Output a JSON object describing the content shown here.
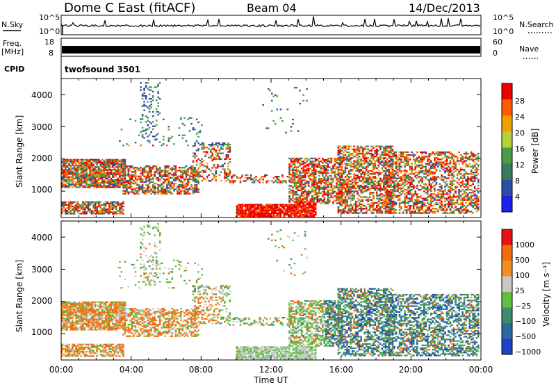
{
  "header": {
    "station": "Dome C East (fitACF)",
    "beam": "Beam 04",
    "date": "14/Dec/2013"
  },
  "top_panels": {
    "nsky_label": "N.Sky",
    "nsky_ticks": [
      "10^5",
      "10^0"
    ],
    "nsearch_label": "N.Search",
    "nsearch_ticks": [
      "10^5",
      "10^0"
    ],
    "freq_label": "Freq.",
    "freq_unit": "[MHz]",
    "freq_ticks": [
      "18",
      "8"
    ],
    "nave_label": "Nave",
    "nave_ticks": [
      "60",
      "0"
    ],
    "cpid_label": "CPID",
    "cpid_value": "twofsound 3501"
  },
  "chart_data": [
    {
      "type": "heatmap",
      "panel": "power",
      "ylabel": "Slant Range [km]",
      "ylim": [
        180,
        4500
      ],
      "yticks": [
        "4000",
        "3000",
        "2000",
        "1000"
      ],
      "colorbar_label": "Power [dB]",
      "colorbar_ticks": [
        "28",
        "24",
        "20",
        "16",
        "12",
        "8",
        "4"
      ],
      "colorbar_range": [
        0,
        32
      ],
      "colors": [
        "#2020e8",
        "#2e4ea6",
        "#3c7a5e",
        "#4a9a4a",
        "#b8d038",
        "#f0a000",
        "#ff5a00",
        "#ee0000"
      ]
    },
    {
      "type": "heatmap",
      "panel": "velocity",
      "ylabel": "Slant Range [km]",
      "ylim": [
        180,
        4500
      ],
      "yticks": [
        "4000",
        "3000",
        "2000",
        "1000"
      ],
      "colorbar_label": "Velocity [m s⁻¹]",
      "colorbar_ticks": [
        "1000",
        "500",
        "100",
        "25",
        "−25",
        "−100",
        "−500",
        "−1000"
      ],
      "colors": [
        "#2040c8",
        "#2d6aa0",
        "#3e8c6e",
        "#60c040",
        "#c8c8c8",
        "#f09020",
        "#f06a10",
        "#e81010"
      ],
      "xlabel": "Time UT",
      "xticks": [
        "00:00",
        "04:00",
        "08:00",
        "12:00",
        "16:00",
        "20:00",
        "00:00"
      ],
      "xlim_hours": [
        0,
        24
      ]
    }
  ]
}
